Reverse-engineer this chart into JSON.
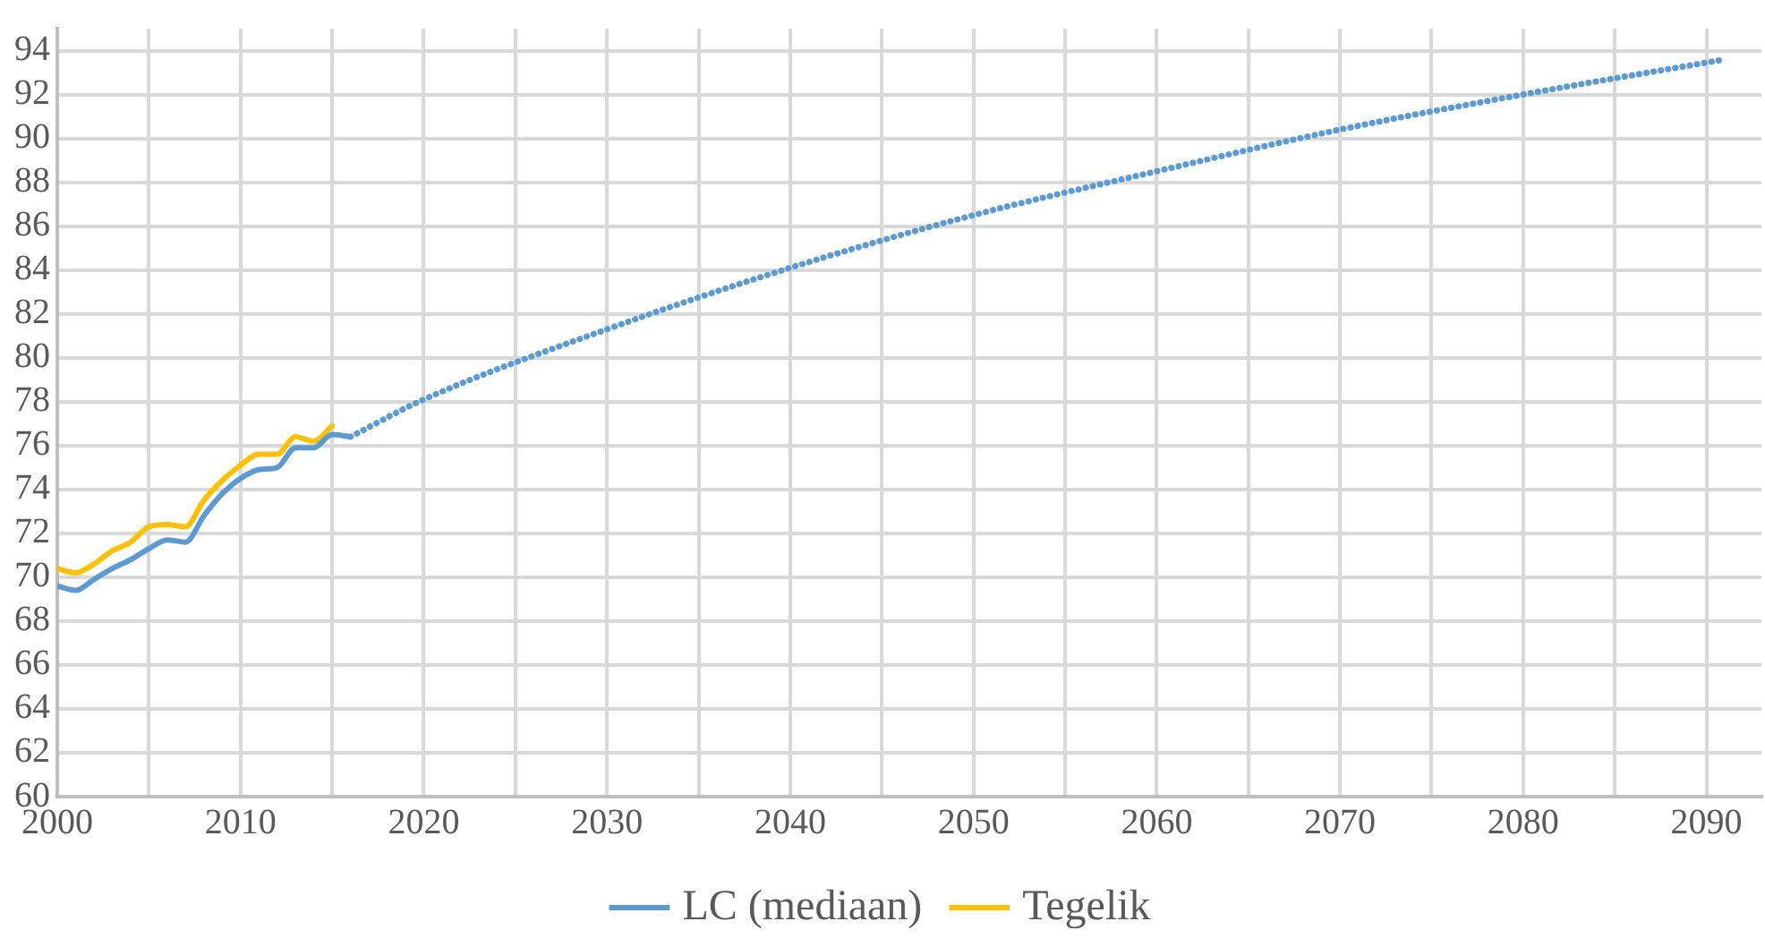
{
  "chart_data": {
    "type": "line",
    "xlim": [
      2000,
      2093
    ],
    "ylim": [
      60,
      95
    ],
    "xticks": [
      2000,
      {
        "value": 2005,
        "label": null
      },
      2010,
      {
        "value": 2015,
        "label": null
      },
      2020,
      {
        "value": 2025,
        "label": null
      },
      2030,
      {
        "value": 2035,
        "label": null
      },
      2040,
      {
        "value": 2045,
        "label": null
      },
      2050,
      {
        "value": 2055,
        "label": null
      },
      2060,
      {
        "value": 2065,
        "label": null
      },
      2070,
      {
        "value": 2075,
        "label": null
      },
      2080,
      {
        "value": 2085,
        "label": null
      },
      2090
    ],
    "yticks": [
      60,
      62,
      64,
      66,
      68,
      70,
      72,
      74,
      76,
      78,
      80,
      82,
      84,
      86,
      88,
      90,
      92,
      94
    ],
    "grid": true,
    "legend": "bottom",
    "marker": "none",
    "series": [
      {
        "name": "LC (mediaan)",
        "color": "#5b9bd5",
        "line_style": "solid",
        "x": [
          2000,
          2001,
          2002,
          2003,
          2004,
          2005,
          2006,
          2007,
          2008,
          2009,
          2010,
          2011,
          2012,
          2013,
          2014,
          2015,
          2016
        ],
        "values": [
          69.6,
          69.4,
          69.9,
          70.4,
          70.8,
          71.3,
          71.7,
          71.6,
          72.8,
          73.8,
          74.5,
          74.9,
          75.0,
          75.9,
          75.9,
          76.5,
          76.4
        ]
      },
      {
        "name": "Tegelik",
        "color": "#ffc000",
        "line_style": "solid",
        "x": [
          2000,
          2001,
          2002,
          2003,
          2004,
          2005,
          2006,
          2007,
          2008,
          2009,
          2010,
          2011,
          2012,
          2013,
          2014,
          2015
        ],
        "values": [
          70.4,
          70.2,
          70.6,
          71.2,
          71.6,
          72.3,
          72.4,
          72.3,
          73.5,
          74.4,
          75.1,
          75.6,
          75.6,
          76.4,
          76.2,
          76.9
        ]
      },
      {
        "color": "#5b9bd5",
        "line_style": "dotted",
        "x": [
          2016,
          2020,
          2030,
          2040,
          2050,
          2060,
          2070,
          2080,
          2091
        ],
        "values": [
          76.4,
          78.1,
          81.3,
          84.1,
          86.5,
          88.5,
          90.4,
          92.0,
          93.6
        ]
      }
    ]
  }
}
